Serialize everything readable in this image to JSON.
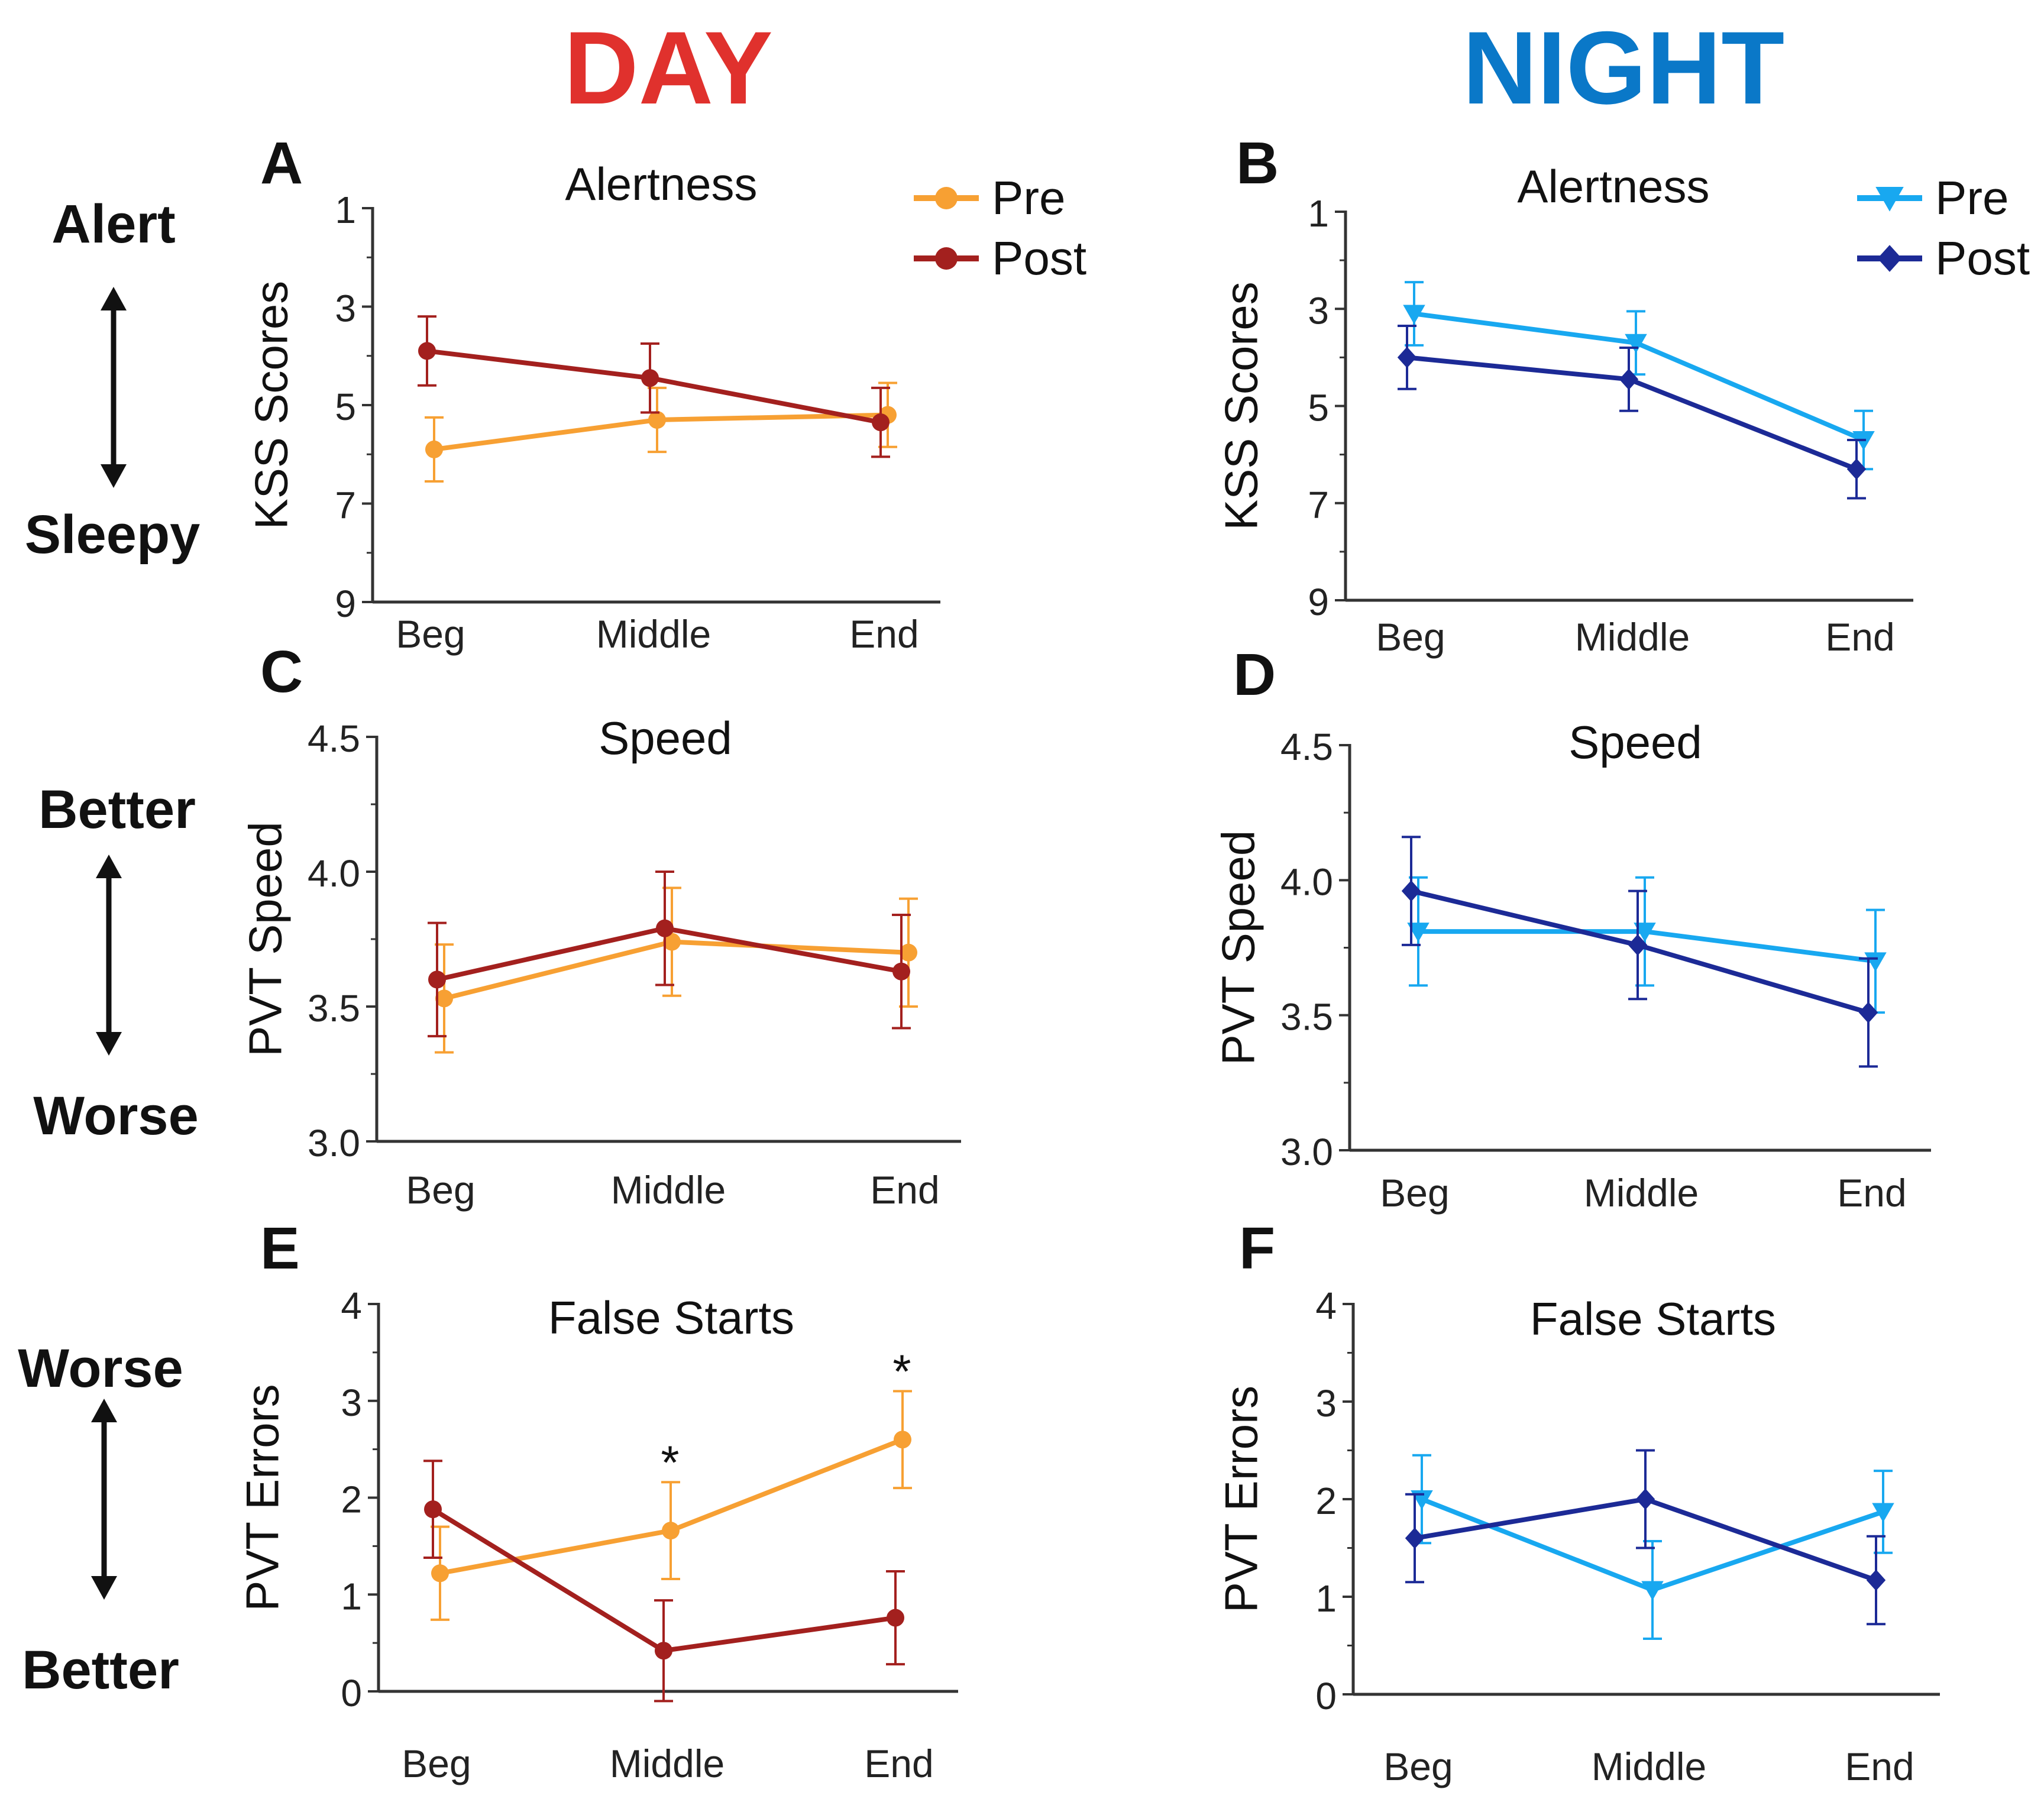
{
  "headers": {
    "day": "DAY",
    "night": "NIGHT"
  },
  "colors": {
    "day_header": "#e0312d",
    "night_header": "#0a78c8",
    "day_pre": "#f7a033",
    "day_post": "#a3201e",
    "night_pre": "#18a8f0",
    "night_post": "#1c2a96",
    "axis": "#333333",
    "text": "#111111"
  },
  "side_labels": {
    "row1": {
      "top": "Alert",
      "bottom": "Sleepy"
    },
    "row2": {
      "top": "Better",
      "bottom": "Worse"
    },
    "row3": {
      "top": "Worse",
      "bottom": "Better"
    }
  },
  "chart_data": [
    {
      "panel": "A",
      "type": "line",
      "title": "Alertness",
      "ylabel": "KSS Scores",
      "categories": [
        "Beg",
        "Middle",
        "End"
      ],
      "ylim": [
        1,
        9
      ],
      "y_inverted": true,
      "yticks": [
        1,
        3,
        5,
        7,
        9
      ],
      "ytick_labels": [
        "1",
        "3",
        "5",
        "7",
        "9"
      ],
      "legend": "top-right",
      "series": [
        {
          "name": "Pre",
          "marker": "circle",
          "color": "#f7a033",
          "values": [
            5.9,
            5.3,
            5.2
          ],
          "errors": [
            0.65,
            0.65,
            0.65
          ]
        },
        {
          "name": "Post",
          "marker": "circle",
          "color": "#a3201e",
          "values": [
            3.9,
            4.45,
            5.35
          ],
          "errors": [
            0.7,
            0.7,
            0.7
          ]
        }
      ],
      "annotations": []
    },
    {
      "panel": "B",
      "type": "line",
      "title": "Alertness",
      "ylabel": "KSS Scores",
      "categories": [
        "Beg",
        "Middle",
        "End"
      ],
      "ylim": [
        1,
        9
      ],
      "y_inverted": true,
      "yticks": [
        1,
        3,
        5,
        7,
        9
      ],
      "ytick_labels": [
        "1",
        "3",
        "5",
        "7",
        "9"
      ],
      "legend": "top-right",
      "series": [
        {
          "name": "Pre",
          "marker": "triangle-down",
          "color": "#18a8f0",
          "values": [
            3.1,
            3.7,
            5.7
          ],
          "errors": [
            0.65,
            0.65,
            0.6
          ]
        },
        {
          "name": "Post",
          "marker": "diamond",
          "color": "#1c2a96",
          "values": [
            4.0,
            4.45,
            6.3
          ],
          "errors": [
            0.65,
            0.65,
            0.6
          ]
        }
      ],
      "annotations": []
    },
    {
      "panel": "C",
      "type": "line",
      "title": "Speed",
      "ylabel": "PVT Speed",
      "categories": [
        "Beg",
        "Middle",
        "End"
      ],
      "ylim": [
        3.0,
        4.5
      ],
      "y_inverted": false,
      "yticks": [
        3.0,
        3.5,
        4.0,
        4.5
      ],
      "ytick_labels": [
        "3.0",
        "3.5",
        "4.0",
        "4.5"
      ],
      "legend": "none",
      "series": [
        {
          "name": "Pre",
          "marker": "circle",
          "color": "#f7a033",
          "values": [
            3.53,
            3.74,
            3.7
          ],
          "errors": [
            0.2,
            0.2,
            0.2
          ]
        },
        {
          "name": "Post",
          "marker": "circle",
          "color": "#a3201e",
          "values": [
            3.6,
            3.79,
            3.63
          ],
          "errors": [
            0.21,
            0.21,
            0.21
          ]
        }
      ],
      "annotations": []
    },
    {
      "panel": "D",
      "type": "line",
      "title": "Speed",
      "ylabel": "PVT Speed",
      "categories": [
        "Beg",
        "Middle",
        "End"
      ],
      "ylim": [
        3.0,
        4.5
      ],
      "y_inverted": false,
      "yticks": [
        3.0,
        3.5,
        4.0,
        4.5
      ],
      "ytick_labels": [
        "3.0",
        "3.5",
        "4.0",
        "4.5"
      ],
      "legend": "none",
      "series": [
        {
          "name": "Pre",
          "marker": "triangle-down",
          "color": "#18a8f0",
          "values": [
            3.81,
            3.81,
            3.7
          ],
          "errors": [
            0.2,
            0.2,
            0.19
          ]
        },
        {
          "name": "Post",
          "marker": "diamond",
          "color": "#1c2a96",
          "values": [
            3.96,
            3.76,
            3.51
          ],
          "errors": [
            0.2,
            0.2,
            0.2
          ]
        }
      ],
      "annotations": []
    },
    {
      "panel": "E",
      "type": "line",
      "title": "False Starts",
      "ylabel": "PVT Errors",
      "categories": [
        "Beg",
        "Middle",
        "End"
      ],
      "ylim": [
        0,
        4
      ],
      "y_inverted": false,
      "yticks": [
        0,
        1,
        2,
        3,
        4
      ],
      "ytick_labels": [
        "0",
        "1",
        "2",
        "3",
        "4"
      ],
      "legend": "none",
      "series": [
        {
          "name": "Pre",
          "marker": "circle",
          "color": "#f7a033",
          "values": [
            1.22,
            1.66,
            2.6
          ],
          "errors": [
            0.48,
            0.5,
            0.5
          ]
        },
        {
          "name": "Post",
          "marker": "circle",
          "color": "#a3201e",
          "values": [
            1.88,
            0.42,
            0.76
          ],
          "errors": [
            0.5,
            0.52,
            0.48
          ]
        }
      ],
      "annotations": [
        {
          "text": "*",
          "category_index": 1,
          "y": 2.38
        },
        {
          "text": "*",
          "category_index": 2,
          "y": 3.32
        }
      ]
    },
    {
      "panel": "F",
      "type": "line",
      "title": "False Starts",
      "ylabel": "PVT Errors",
      "categories": [
        "Beg",
        "Middle",
        "End"
      ],
      "ylim": [
        0,
        4
      ],
      "y_inverted": false,
      "yticks": [
        0,
        1,
        2,
        3,
        4
      ],
      "ytick_labels": [
        "0",
        "1",
        "2",
        "3",
        "4"
      ],
      "legend": "none",
      "series": [
        {
          "name": "Pre",
          "marker": "triangle-down",
          "color": "#18a8f0",
          "values": [
            2.0,
            1.07,
            1.87
          ],
          "errors": [
            0.45,
            0.5,
            0.42
          ]
        },
        {
          "name": "Post",
          "marker": "diamond",
          "color": "#1c2a96",
          "values": [
            1.6,
            2.0,
            1.17
          ],
          "errors": [
            0.45,
            0.5,
            0.45
          ]
        }
      ],
      "annotations": []
    }
  ]
}
